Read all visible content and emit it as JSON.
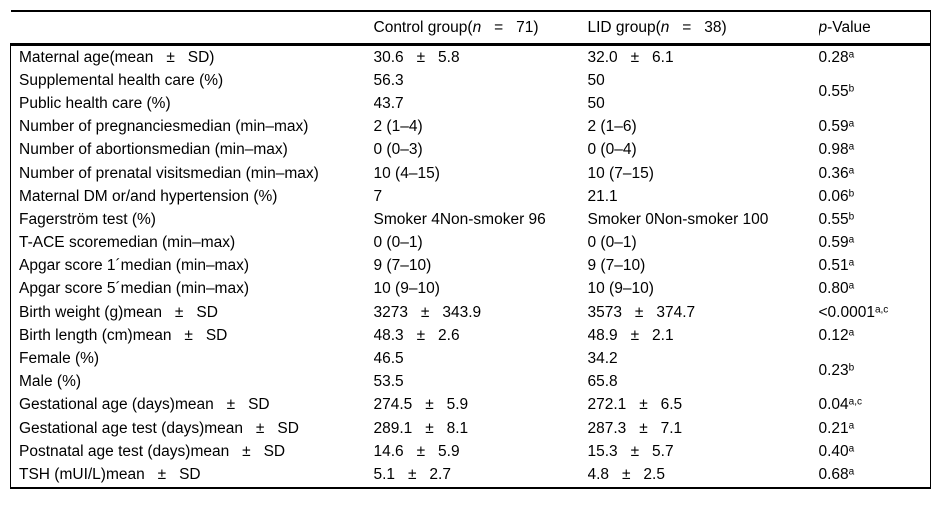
{
  "table": {
    "columns": {
      "control": {
        "pre": "Control group(",
        "italic": "n",
        "post": "   =   71)"
      },
      "lid": {
        "pre": "LID group(",
        "italic": "n",
        "post": "   =   38)"
      },
      "pvalue": {
        "italic": "p",
        "post": "-Value"
      }
    },
    "rows": [
      {
        "label": "Maternal age(mean   ±   SD)",
        "control": "30.6   ±   5.8",
        "lid": "32.0   ±   6.1",
        "p": {
          "val": "0.28",
          "sup": "a"
        }
      },
      {
        "label": "Supplemental health care (%)",
        "control": "56.3",
        "lid": "50",
        "p": {
          "val": "0.55",
          "sup": "b",
          "rowspan": 2
        }
      },
      {
        "label": "Public health care (%)",
        "control": "43.7",
        "lid": "50",
        "p": null
      },
      {
        "label": "Number of pregnanciesmedian (min–max)",
        "control": "2 (1–4)",
        "lid": "2 (1–6)",
        "p": {
          "val": "0.59",
          "sup": "a"
        }
      },
      {
        "label": "Number of abortionsmedian (min–max)",
        "control": "0 (0–3)",
        "lid": "0 (0–4)",
        "p": {
          "val": "0.98",
          "sup": "a"
        }
      },
      {
        "label": "Number of prenatal visitsmedian (min–max)",
        "control": "10 (4–15)",
        "lid": "10 (7–15)",
        "p": {
          "val": "0.36",
          "sup": "a"
        }
      },
      {
        "label": "Maternal DM or/and hypertension (%)",
        "control": "7",
        "lid": "21.1",
        "p": {
          "val": "0.06",
          "sup": "b"
        }
      },
      {
        "label": "Fagerström test (%)",
        "control": "Smoker 4Non-smoker 96",
        "lid": "Smoker 0Non-smoker 100",
        "p": {
          "val": "0.55",
          "sup": "b"
        }
      },
      {
        "label": "T-ACE scoremedian (min–max)",
        "control": "0 (0–1)",
        "lid": "0 (0–1)",
        "p": {
          "val": "0.59",
          "sup": "a"
        }
      },
      {
        "label": "Apgar score 1´median (min–max)",
        "control": "9 (7–10)",
        "lid": "9 (7–10)",
        "p": {
          "val": "0.51",
          "sup": "a"
        }
      },
      {
        "label": "Apgar score 5´median (min–max)",
        "control": "10 (9–10)",
        "lid": "10 (9–10)",
        "p": {
          "val": "0.80",
          "sup": "a"
        }
      },
      {
        "label": "Birth weight (g)mean   ±   SD",
        "control": "3273   ±   343.9",
        "lid": "3573   ±   374.7",
        "p": {
          "val": "<0.0001",
          "sup": "a,c"
        }
      },
      {
        "label": "Birth length (cm)mean   ±   SD",
        "control": "48.3   ±   2.6",
        "lid": "48.9   ±   2.1",
        "p": {
          "val": "0.12",
          "sup": "a"
        }
      },
      {
        "label": "Female (%)",
        "control": "46.5",
        "lid": "34.2",
        "p": {
          "val": "0.23",
          "sup": "b",
          "rowspan": 2
        }
      },
      {
        "label": "Male (%)",
        "control": "53.5",
        "lid": "65.8",
        "p": null
      },
      {
        "label": "Gestational age (days)mean   ±   SD",
        "control": "274.5   ±   5.9",
        "lid": "272.1   ±   6.5",
        "p": {
          "val": "0.04",
          "sup": "a,c"
        }
      },
      {
        "label": "Gestational age test (days)mean   ±   SD",
        "control": "289.1   ±   8.1",
        "lid": "287.3   ±   7.1",
        "p": {
          "val": "0.21",
          "sup": "a"
        }
      },
      {
        "label": "Postnatal age test (days)mean   ±   SD",
        "control": "14.6   ±   5.9",
        "lid": "15.3   ±   5.7",
        "p": {
          "val": "0.40",
          "sup": "a"
        }
      },
      {
        "label": "TSH (mUI/L)mean   ±   SD",
        "control": "5.1   ±   2.7",
        "lid": "4.8   ±   2.5",
        "p": {
          "val": "0.68",
          "sup": "a"
        }
      }
    ]
  }
}
